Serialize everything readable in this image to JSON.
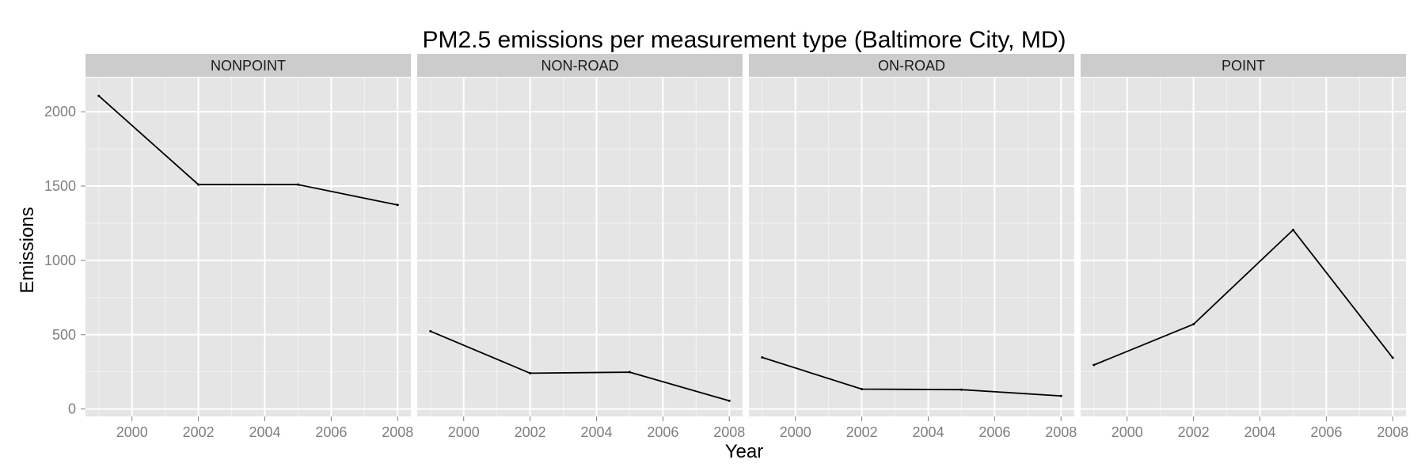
{
  "chart_data": {
    "type": "line",
    "title": "PM2.5 emissions per measurement type (Baltimore City, MD)",
    "xlabel": "Year",
    "ylabel": "Emissions",
    "x": [
      1999,
      2002,
      2005,
      2008
    ],
    "xlim": [
      1998.6,
      2008.4
    ],
    "ylim": [
      -50,
      2230
    ],
    "x_ticks": [
      2000,
      2002,
      2004,
      2006,
      2008
    ],
    "y_ticks": [
      0,
      500,
      1000,
      1500,
      2000
    ],
    "grid": true,
    "colors": {
      "panel_bg": "#e5e5e5",
      "strip_bg": "#cccccc",
      "grid_major": "#ffffff",
      "grid_minor": "#f2f2f2",
      "line": "#000000",
      "tick_text": "#7f7f7f"
    },
    "panels": [
      {
        "name": "NONPOINT",
        "values": [
          2107,
          1510,
          1510,
          1373
        ]
      },
      {
        "name": "NON-ROAD",
        "values": [
          523,
          241,
          248,
          55
        ]
      },
      {
        "name": "ON-ROAD",
        "values": [
          347,
          134,
          130,
          88
        ]
      },
      {
        "name": "POINT",
        "values": [
          296,
          570,
          1205,
          345
        ]
      }
    ]
  }
}
